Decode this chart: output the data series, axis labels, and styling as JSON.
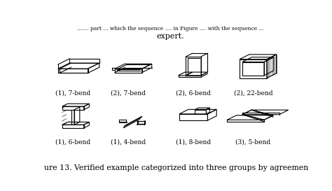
{
  "title_top": "expert.",
  "caption": "ure 13. Verified example categorized into three groups by agreemen",
  "labels_row1": [
    "(1), 7-bend",
    "(2), 7-bend",
    "(2), 6-bend",
    "(2), 22-bend"
  ],
  "labels_row2": [
    "(1), 6-bend",
    "(1), 4-bend",
    "(1), 8-bend",
    "(3), 5-bend"
  ],
  "bg_color": "#ffffff",
  "text_color": "#000000",
  "fig_width": 4.74,
  "fig_height": 2.73,
  "dpi": 100
}
